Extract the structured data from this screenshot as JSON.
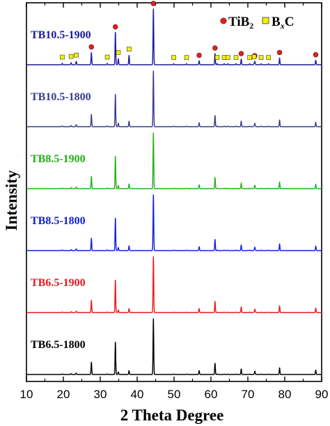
{
  "chart_data": {
    "type": "line",
    "title": "",
    "xlabel": "2 Theta Degree",
    "ylabel": "Intensity",
    "xlim": [
      10,
      90
    ],
    "xticks": [
      10,
      20,
      30,
      40,
      50,
      60,
      70,
      80,
      90
    ],
    "grid": false,
    "legend": {
      "placement": "top-right",
      "entries": [
        {
          "label": "TiB",
          "sub": "2",
          "marker": "circle",
          "color": "#e02020"
        },
        {
          "label": "B",
          "sub": "x",
          "label2": "C",
          "marker": "square",
          "color": "#f4f000"
        }
      ]
    },
    "peaks": {
      "tib2": {
        "x": [
          27.6,
          34.1,
          44.4,
          56.8,
          61.1,
          68.2,
          71.9,
          78.6,
          88.4
        ],
        "rel_intensity": [
          0.22,
          0.58,
          1.0,
          0.07,
          0.2,
          0.1,
          0.06,
          0.12,
          0.08
        ]
      },
      "bxc": {
        "x": [
          19.7,
          22.1,
          23.5,
          31.9,
          34.9,
          37.8,
          49.9,
          53.4,
          61.7,
          63.6,
          64.6,
          66.8,
          70.5,
          71.7,
          73.6,
          75.6
        ],
        "rel_intensity": [
          0.04,
          0.06,
          0.1,
          0.04,
          0.18,
          0.28,
          0.03,
          0.03,
          0.03,
          0.03,
          0.03,
          0.03,
          0.03,
          0.04,
          0.03,
          0.03
        ]
      }
    },
    "series": [
      {
        "name": "TB6.5-1800",
        "color": "#000000",
        "tib2_scale": 1.0,
        "bxc_scale": 0.25
      },
      {
        "name": "TB6.5-1900",
        "color": "#e41a1c",
        "tib2_scale": 1.0,
        "bxc_scale": 0.25
      },
      {
        "name": "TB8.5-1800",
        "color": "#1020d8",
        "tib2_scale": 1.0,
        "bxc_scale": 0.3
      },
      {
        "name": "TB8.5-1900",
        "color": "#22b014",
        "tib2_scale": 1.0,
        "bxc_scale": 0.3
      },
      {
        "name": "TB10.5-1800",
        "color": "#3a3a8c",
        "tib2_scale": 1.0,
        "bxc_scale": 0.35
      },
      {
        "name": "TB10.5-1900",
        "color": "#1a1a9a",
        "tib2_scale": 1.0,
        "bxc_scale": 0.6
      }
    ]
  }
}
